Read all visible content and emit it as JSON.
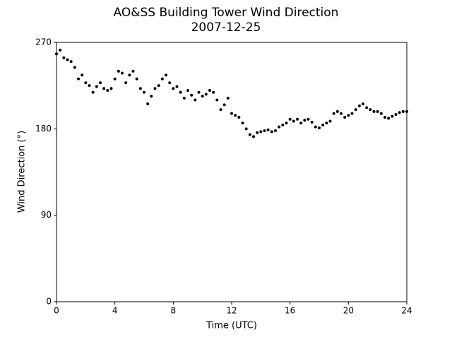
{
  "chart_data": {
    "type": "scatter",
    "title": "AO&SS Building Tower Wind Direction",
    "subtitle": "2007-12-25",
    "x_label": "Time (UTC)",
    "y_label": "Wind Direction (°)",
    "color": "#000000",
    "xlim": [
      0,
      24
    ],
    "xticks": [
      0,
      4,
      8,
      12,
      16,
      20,
      24
    ],
    "ylim": [
      0,
      270
    ],
    "yticks": [
      0,
      90,
      180,
      270
    ],
    "x": [
      0,
      0.25,
      0.5,
      0.75,
      1,
      1.25,
      1.5,
      1.75,
      2,
      2.25,
      2.5,
      2.75,
      3,
      3.25,
      3.5,
      3.75,
      4,
      4.25,
      4.5,
      4.75,
      5,
      5.25,
      5.5,
      5.75,
      6,
      6.25,
      6.5,
      6.75,
      7,
      7.25,
      7.5,
      7.75,
      8,
      8.25,
      8.5,
      8.75,
      9,
      9.25,
      9.5,
      9.75,
      10,
      10.25,
      10.5,
      10.75,
      11,
      11.25,
      11.5,
      11.75,
      12,
      12.25,
      12.5,
      12.75,
      13,
      13.25,
      13.5,
      13.75,
      14,
      14.25,
      14.5,
      14.75,
      15,
      15.25,
      15.5,
      15.75,
      16,
      16.25,
      16.5,
      16.75,
      17,
      17.25,
      17.5,
      17.75,
      18,
      18.25,
      18.5,
      18.75,
      19,
      19.25,
      19.5,
      19.75,
      20,
      20.25,
      20.5,
      20.75,
      21,
      21.25,
      21.5,
      21.75,
      22,
      22.25,
      22.5,
      22.75,
      23,
      23.25,
      23.5,
      23.75,
      24
    ],
    "values": [
      258,
      262,
      254,
      252,
      250,
      244,
      232,
      236,
      228,
      225,
      218,
      224,
      228,
      222,
      220,
      222,
      232,
      240,
      238,
      228,
      236,
      240,
      232,
      222,
      218,
      206,
      214,
      222,
      225,
      232,
      236,
      228,
      222,
      224,
      218,
      212,
      220,
      215,
      210,
      218,
      214,
      216,
      220,
      218,
      210,
      200,
      205,
      212,
      196,
      194,
      192,
      186,
      180,
      174,
      172,
      176,
      177,
      178,
      179,
      177,
      178,
      182,
      184,
      186,
      190,
      188,
      190,
      186,
      189,
      190,
      187,
      182,
      181,
      184,
      186,
      188,
      196,
      198,
      196,
      192,
      194,
      196,
      200,
      204,
      206,
      202,
      200,
      198,
      198,
      196,
      192,
      191,
      193,
      195,
      197,
      198,
      198
    ]
  }
}
